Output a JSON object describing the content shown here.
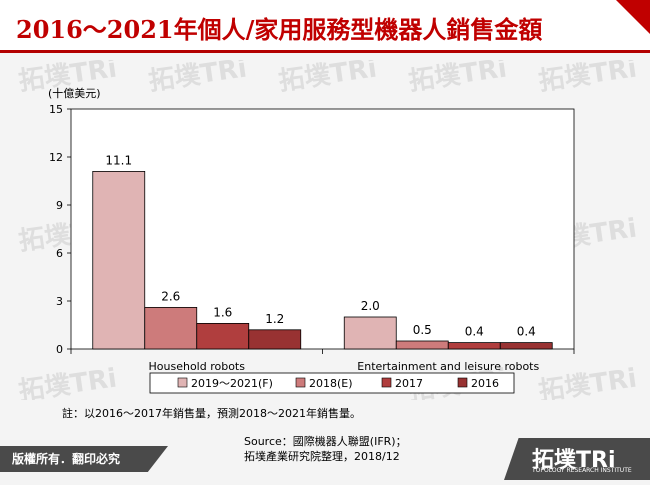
{
  "page": {
    "title": "2016～2021年個人/家用服務型機器人銷售金額",
    "note": "註：以2016～2017年銷售量，預測2018～2021年銷售量。",
    "source_line1": "Source：國際機器人聯盟(IFR)；",
    "source_line2": "拓墣產業研究院整理，2018/12",
    "footer_left": "版權所有．翻印必究",
    "logo_text": "拓墣TRi",
    "logo_sub": "TOPOLOGY RESEARCH INSTITUTE",
    "watermark": "拓墣TRi",
    "accent_color": "#c00000"
  },
  "chart_data": {
    "type": "bar",
    "ylabel": "(十億美元)",
    "xlabel": "",
    "ylim": [
      0,
      15
    ],
    "yticks": [
      0,
      3,
      6,
      9,
      12,
      15
    ],
    "grid": false,
    "legend_position": "bottom",
    "categories": [
      "Household robots",
      "Entertainment and leisure robots"
    ],
    "series": [
      {
        "name": "2019～2021(F)",
        "values": [
          11.1,
          2.0
        ],
        "labels": [
          "11.1",
          "2.0"
        ],
        "color": "#e0b4b4"
      },
      {
        "name": "2018(E)",
        "values": [
          2.6,
          0.5
        ],
        "labels": [
          "2.6",
          "0.5"
        ],
        "color": "#cd7b7b"
      },
      {
        "name": "2017",
        "values": [
          1.6,
          0.4
        ],
        "labels": [
          "1.6",
          "0.4"
        ],
        "color": "#b03e3e"
      },
      {
        "name": "2016",
        "values": [
          1.2,
          0.4
        ],
        "labels": [
          "1.2",
          "0.4"
        ],
        "color": "#983232"
      }
    ]
  }
}
